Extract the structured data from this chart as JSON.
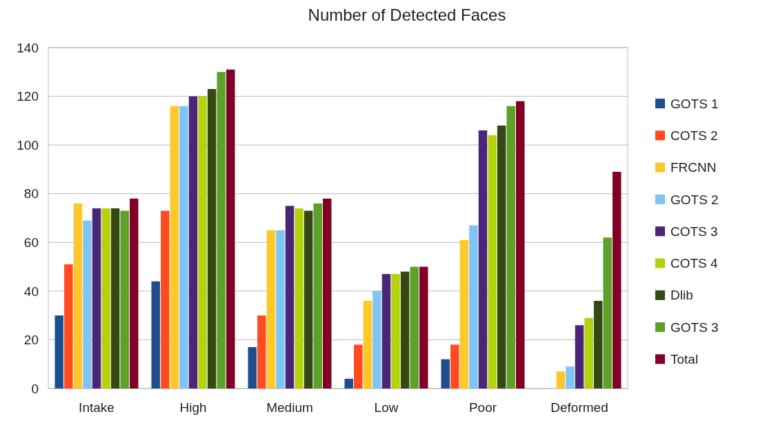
{
  "chart_data": {
    "type": "bar",
    "title": "Number of Detected Faces",
    "categories": [
      "Intake",
      "High",
      "Medium",
      "Low",
      "Poor",
      "Deformed"
    ],
    "series": [
      {
        "name": "GOTS 1",
        "color": "#1f4e8c",
        "values": [
          30,
          44,
          17,
          4,
          12,
          0
        ]
      },
      {
        "name": "COTS 2",
        "color": "#ff4b1f",
        "values": [
          51,
          73,
          30,
          18,
          18,
          0
        ]
      },
      {
        "name": "FRCNN",
        "color": "#ffc82a",
        "values": [
          76,
          116,
          65,
          36,
          61,
          7
        ]
      },
      {
        "name": "GOTS 2",
        "color": "#7fc4f5",
        "values": [
          69,
          116,
          65,
          40,
          67,
          9
        ]
      },
      {
        "name": "COTS 3",
        "color": "#4b2577",
        "values": [
          74,
          120,
          75,
          47,
          106,
          26
        ]
      },
      {
        "name": "COTS 4",
        "color": "#b5d20f",
        "values": [
          74,
          120,
          74,
          47,
          104,
          29
        ]
      },
      {
        "name": "Dlib",
        "color": "#344a12",
        "values": [
          74,
          123,
          73,
          48,
          108,
          36
        ]
      },
      {
        "name": "GOTS 3",
        "color": "#5ea12a",
        "values": [
          73,
          130,
          76,
          50,
          116,
          62
        ]
      },
      {
        "name": "Total",
        "color": "#820025",
        "values": [
          78,
          131,
          78,
          50,
          118,
          89
        ]
      }
    ],
    "ylim": [
      0,
      140
    ],
    "yticks": [
      0,
      20,
      40,
      60,
      80,
      100,
      120,
      140
    ],
    "grid": "y",
    "legend": "right"
  }
}
